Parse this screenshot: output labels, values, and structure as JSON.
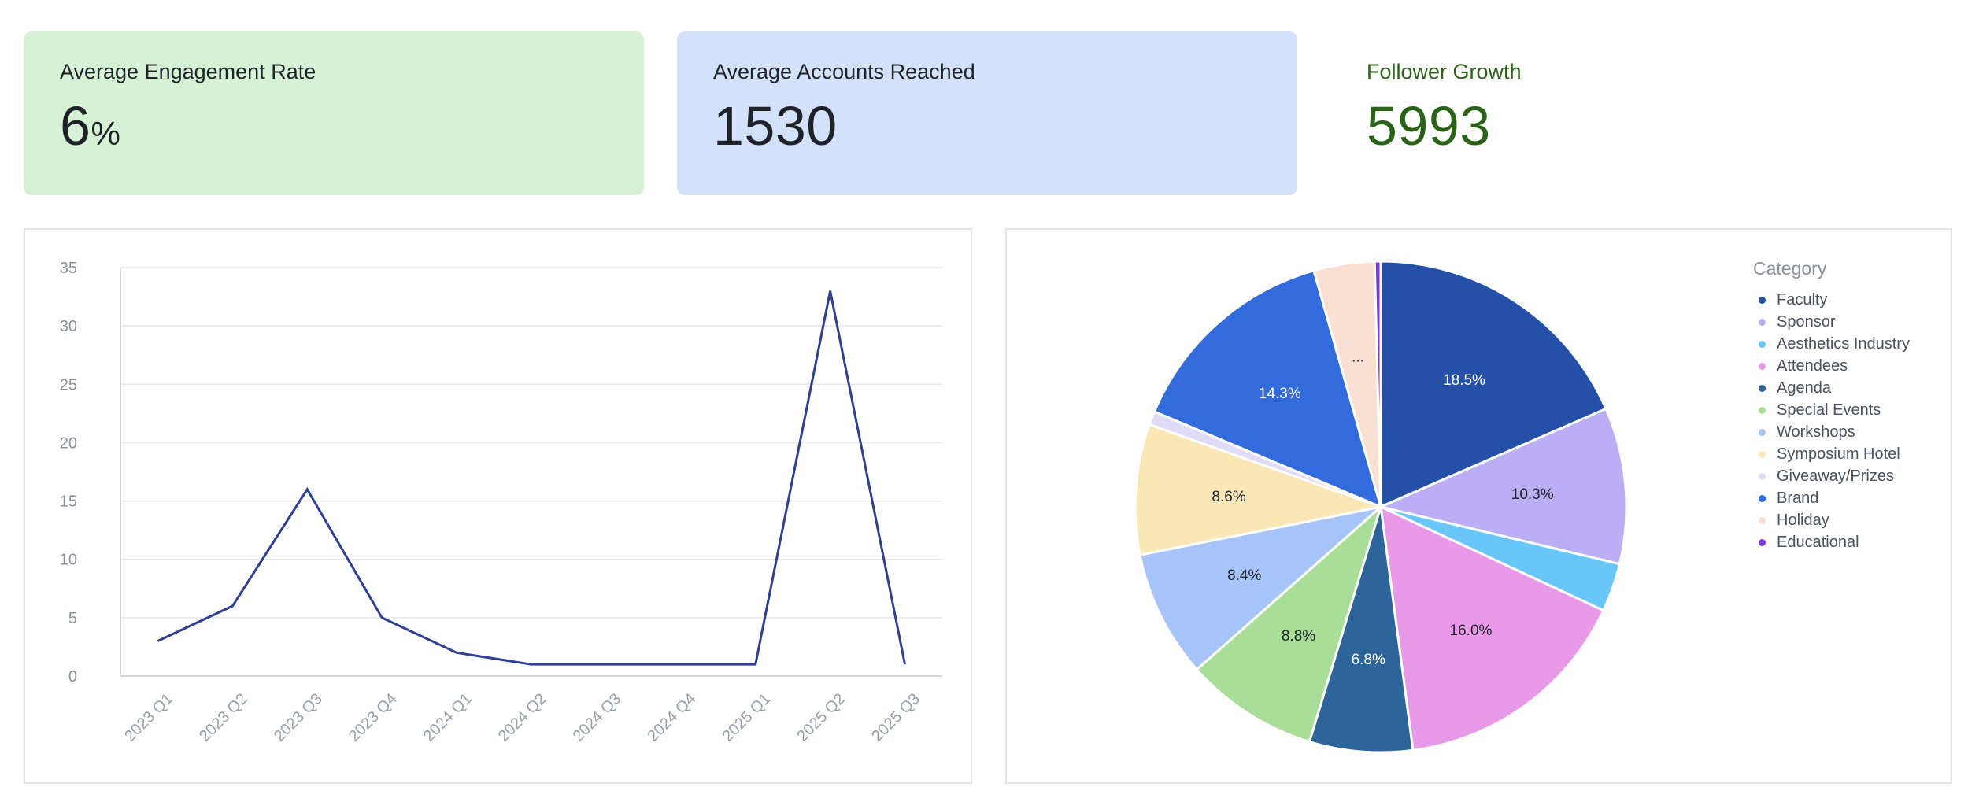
{
  "kpis": [
    {
      "title": "Average Engagement Rate",
      "value": "6",
      "unit": "%"
    },
    {
      "title": "Average Accounts Reached",
      "value": "1530",
      "unit": ""
    },
    {
      "title": "Follower Growth",
      "value": "5993",
      "unit": ""
    }
  ],
  "colors": {
    "kpi1_bg": "#d5f2d5",
    "kpi2_bg": "#d3e1fb",
    "growth_text": "#2a6318",
    "line": "#2f3f94"
  },
  "chart_data": [
    {
      "type": "line",
      "x": [
        "2023 Q1",
        "2023 Q2",
        "2023 Q3",
        "2023 Q4",
        "2024 Q1",
        "2024 Q2",
        "2024 Q3",
        "2024 Q4",
        "2025 Q1",
        "2025 Q2",
        "2025 Q3"
      ],
      "series": [
        {
          "values": [
            3,
            6,
            16,
            5,
            2,
            1,
            1,
            1,
            1,
            33,
            1
          ]
        }
      ],
      "ylim": [
        0,
        35
      ],
      "yticks": [
        0,
        5,
        10,
        15,
        20,
        25,
        30,
        35
      ],
      "grid": true
    },
    {
      "type": "pie",
      "legend_title": "Category",
      "legend_position": "right",
      "slices": [
        {
          "label": "Faculty",
          "value": 18.5,
          "color": "#2450a7",
          "text": "18.5%",
          "label_color": "#ffffff"
        },
        {
          "label": "Sponsor",
          "value": 10.3,
          "color": "#bbaef5",
          "text": "10.3%",
          "label_color": "#1f2329"
        },
        {
          "label": "Aesthetics Industry",
          "value": 3.2,
          "color": "#68c6f9",
          "text": "",
          "label_color": "#1f2329"
        },
        {
          "label": "Attendees",
          "value": 16.0,
          "color": "#e89ae8",
          "text": "16.0%",
          "label_color": "#1f2329"
        },
        {
          "label": "Agenda",
          "value": 6.8,
          "color": "#2d6499",
          "text": "6.8%",
          "label_color": "#ffffff"
        },
        {
          "label": "Special Events",
          "value": 8.8,
          "color": "#a9de98",
          "text": "8.8%",
          "label_color": "#1f2329"
        },
        {
          "label": "Workshops",
          "value": 8.4,
          "color": "#a7c4f8",
          "text": "8.4%",
          "label_color": "#1f2329"
        },
        {
          "label": "Symposium Hotel",
          "value": 8.6,
          "color": "#fae7b6",
          "text": "8.6%",
          "label_color": "#1f2329"
        },
        {
          "label": "Giveaway/Prizes",
          "value": 0.9,
          "color": "#e0dcf7",
          "text": "",
          "label_color": "#1f2329"
        },
        {
          "label": "Brand",
          "value": 14.3,
          "color": "#326bdb",
          "text": "14.3%",
          "label_color": "#ffffff"
        },
        {
          "label": "Holiday",
          "value": 4.0,
          "color": "#f9e0d2",
          "text": "...",
          "label_color": "#1f2329"
        },
        {
          "label": "Educational",
          "value": 0.4,
          "color": "#7a3cd8",
          "text": "",
          "label_color": "#1f2329"
        }
      ]
    }
  ]
}
